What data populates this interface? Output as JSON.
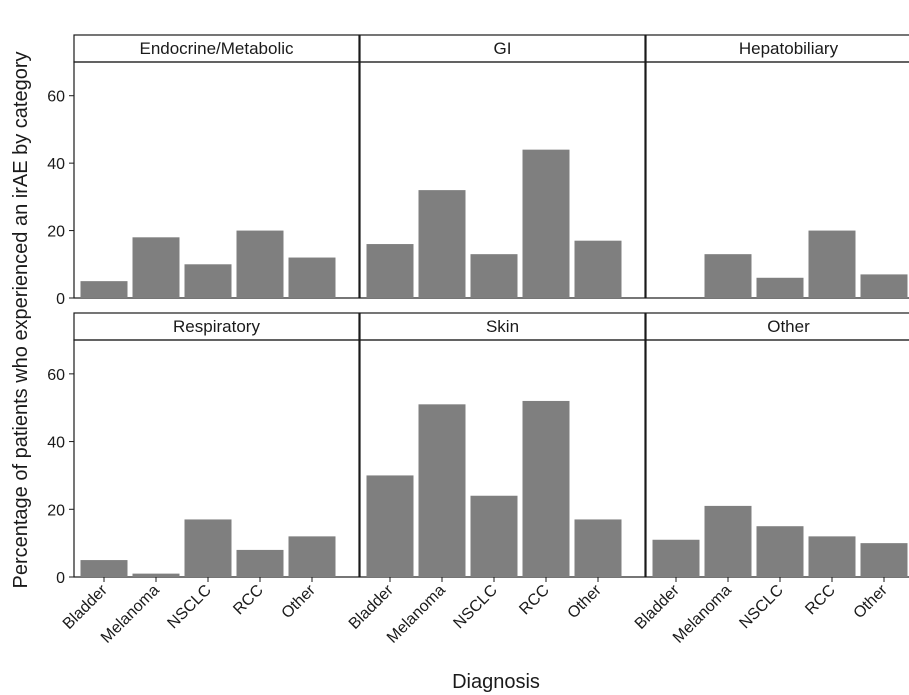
{
  "chart_data": {
    "type": "bar",
    "layout": "facet-grid 2x3",
    "xlabel": "Diagnosis",
    "ylabel": "Percentage of patients who experienced an irAE by category",
    "ylim": [
      0,
      70
    ],
    "yticks": [
      0,
      20,
      40,
      60
    ],
    "categories": [
      "Bladder",
      "Melanoma",
      "NSCLC",
      "RCC",
      "Other"
    ],
    "bar_color": "#7f7f7f",
    "strip_color": "#ffffff",
    "grid": false,
    "panels": [
      {
        "name": "Endocrine/Metabolic",
        "values": [
          5,
          18,
          10,
          20,
          12
        ]
      },
      {
        "name": "GI",
        "values": [
          16,
          32,
          13,
          44,
          17
        ]
      },
      {
        "name": "Hepatobiliary",
        "values": [
          0,
          13,
          6,
          20,
          7
        ]
      },
      {
        "name": "Respiratory",
        "values": [
          5,
          1,
          17,
          8,
          12
        ]
      },
      {
        "name": "Skin",
        "values": [
          30,
          51,
          24,
          52,
          17
        ]
      },
      {
        "name": "Other",
        "values": [
          11,
          21,
          15,
          12,
          10
        ]
      }
    ]
  }
}
